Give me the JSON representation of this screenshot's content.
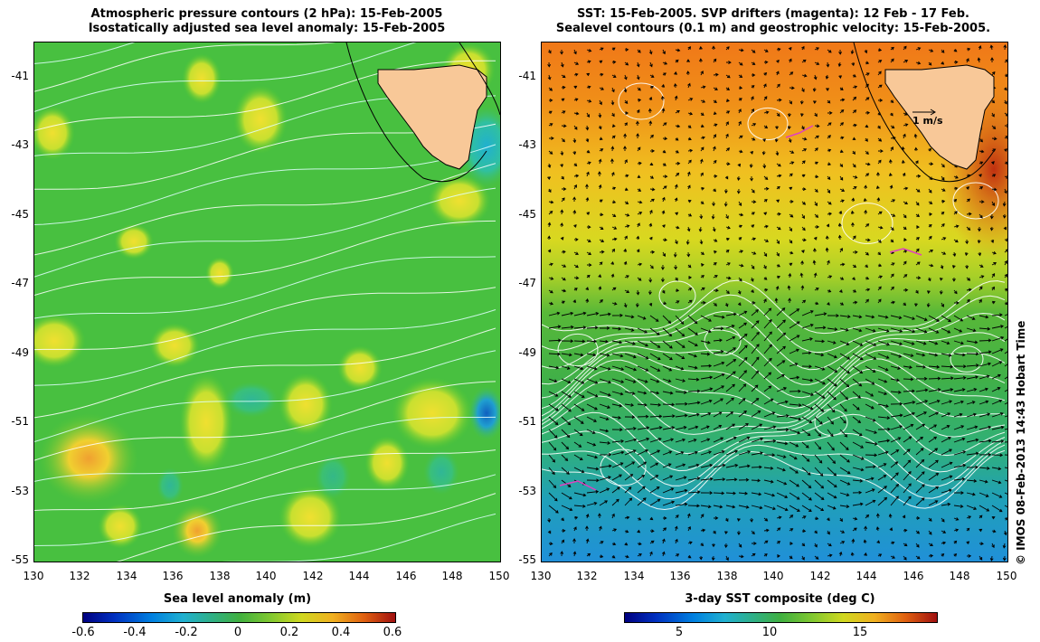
{
  "left_panel": {
    "title_line1": "Atmospheric pressure contours (2 hPa): 15-Feb-2005",
    "title_line2": "Isostatically adjusted sea level anomaly: 15-Feb-2005",
    "y_ticks": [
      "-41",
      "-43",
      "-45",
      "-47",
      "-49",
      "-51",
      "-53",
      "-55"
    ],
    "x_ticks": [
      "130",
      "132",
      "134",
      "136",
      "138",
      "140",
      "142",
      "144",
      "146",
      "148",
      "150"
    ],
    "colorbar_label": "Sea level anomaly (m)",
    "colorbar_ticks": [
      "-0.6",
      "-0.4",
      "-0.2",
      "0",
      "0.2",
      "0.4",
      "0.6"
    ]
  },
  "right_panel": {
    "title_line1": "SST: 15-Feb-2005. SVP drifters (magenta): 12 Feb - 17 Feb.",
    "title_line2": "Sealevel contours (0.1 m) and geostrophic velocity: 15-Feb-2005.",
    "y_ticks": [
      "-41",
      "-43",
      "-45",
      "-47",
      "-49",
      "-51",
      "-53",
      "-55"
    ],
    "x_ticks": [
      "130",
      "132",
      "134",
      "136",
      "138",
      "140",
      "142",
      "144",
      "146",
      "148",
      "150"
    ],
    "scale_label": "1 m/s",
    "colorbar_label": "3-day SST composite (deg C)",
    "colorbar_ticks": [
      "5",
      "10",
      "15"
    ]
  },
  "credit": "© IMOS 08-Feb-2013 14:43 Hobart Time",
  "map": {
    "lat_range": [
      -55,
      -40
    ],
    "lon_range": [
      130,
      150
    ],
    "land": "Tasmania",
    "colors": {
      "land": "#f8c898",
      "contour": "#ffffff",
      "drifter": "#e040c0"
    }
  }
}
